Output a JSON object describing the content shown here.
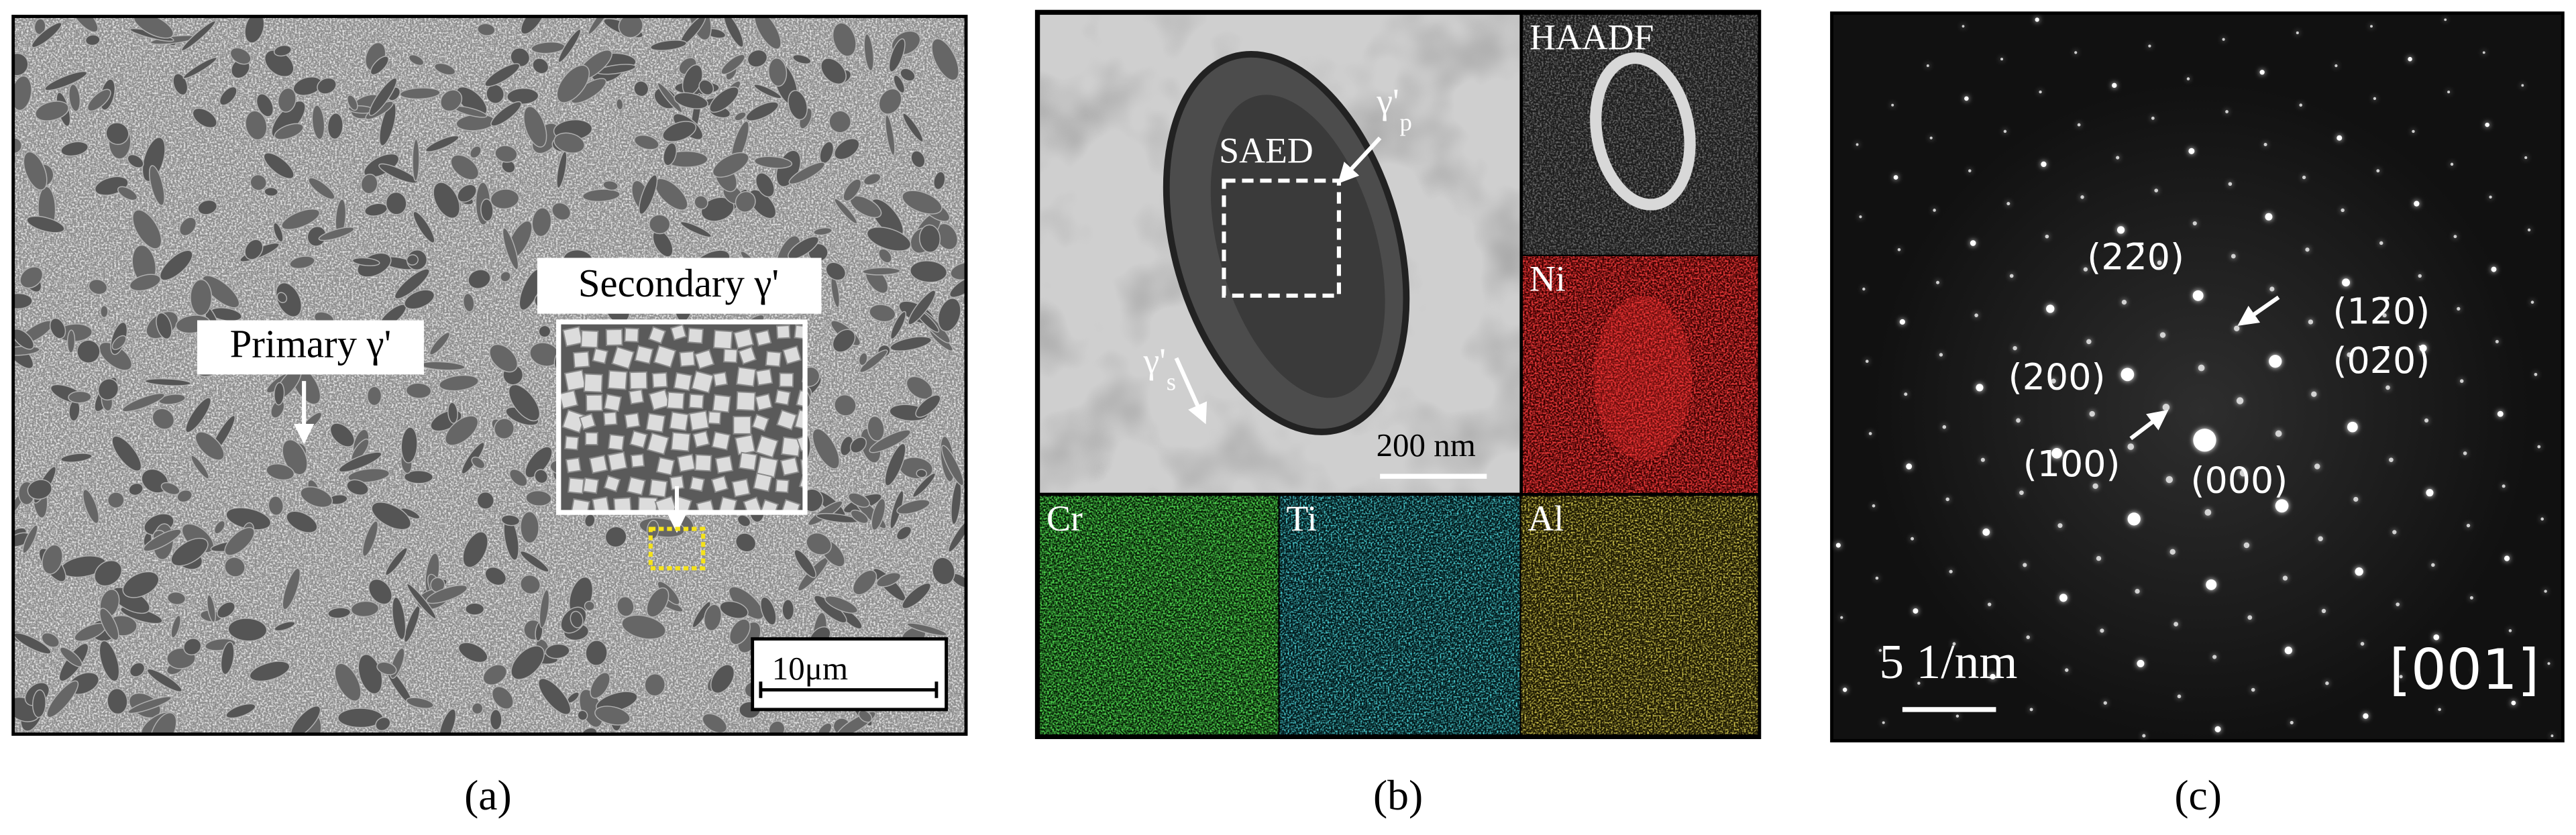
{
  "panels": [
    {
      "caption": "(a)",
      "labels": {
        "primary": "Primary γ'",
        "secondary": "Secondary γ'"
      },
      "scale_bar": "10μm"
    },
    {
      "caption": "(b)",
      "saed": "SAED",
      "gamma_p": {
        "symbol": "γ'",
        "subscript": "p"
      },
      "gamma_s": {
        "symbol": "γ'",
        "subscript": "s"
      },
      "scale_bar": "200 nm",
      "maps": [
        "HAADF",
        "Ni",
        "Cr",
        "Ti",
        "Al"
      ]
    },
    {
      "caption": "(c)",
      "spots": [
        "(22̄0)",
        "(12̄0)",
        "(02̄0)",
        "(200)",
        "(100)",
        "(000)"
      ],
      "scale_bar": "5 1/nm",
      "zone_axis": "[001]"
    }
  ]
}
